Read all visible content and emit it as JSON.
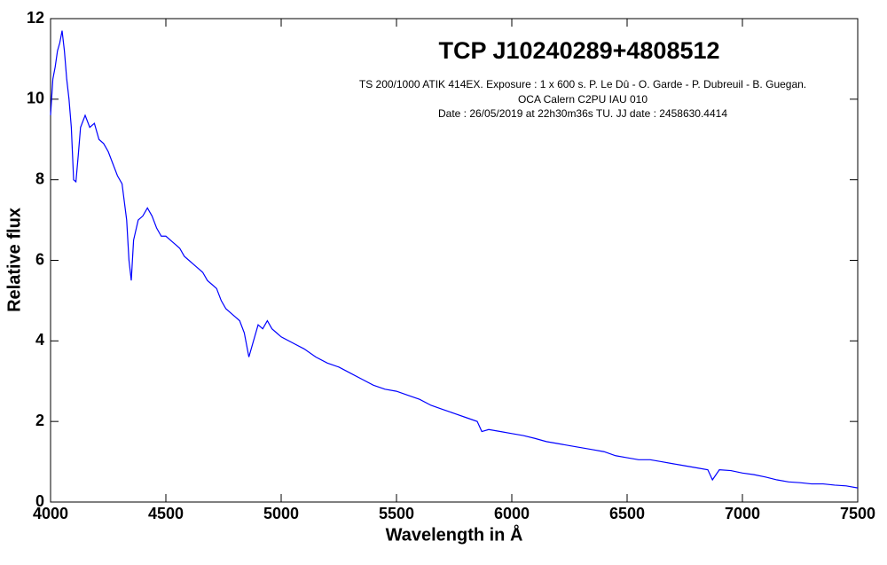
{
  "chart_data": {
    "type": "line",
    "title": "TCP J10240289+4808512",
    "subtitle": [
      "TS 200/1000 ATIK 414EX. Exposure : 1 x 600 s. P. Le Dû - O. Garde - P. Dubreuil - B. Guegan.",
      "OCA Calern C2PU IAU 010",
      "Date : 26/05/2019 at 22h30m36s TU. JJ date : 2458630.4414"
    ],
    "xlabel": "Wavelength in Å",
    "ylabel": "Relative flux",
    "xlim": [
      4000,
      7500
    ],
    "ylim": [
      0,
      12
    ],
    "xticks": [
      4000,
      4500,
      5000,
      5500,
      6000,
      6500,
      7000,
      7500
    ],
    "yticks": [
      0,
      2,
      4,
      6,
      8,
      10,
      12
    ],
    "x": [
      4000,
      4010,
      4020,
      4030,
      4040,
      4050,
      4060,
      4070,
      4080,
      4090,
      4100,
      4110,
      4120,
      4130,
      4150,
      4170,
      4190,
      4210,
      4230,
      4250,
      4270,
      4290,
      4310,
      4330,
      4340,
      4350,
      4360,
      4380,
      4400,
      4420,
      4440,
      4460,
      4480,
      4500,
      4520,
      4540,
      4560,
      4580,
      4600,
      4620,
      4640,
      4660,
      4680,
      4700,
      4720,
      4740,
      4760,
      4780,
      4800,
      4820,
      4840,
      4850,
      4860,
      4880,
      4900,
      4920,
      4940,
      4960,
      4980,
      5000,
      5050,
      5100,
      5150,
      5200,
      5250,
      5300,
      5350,
      5400,
      5450,
      5500,
      5550,
      5600,
      5650,
      5700,
      5750,
      5800,
      5850,
      5870,
      5900,
      5950,
      6000,
      6050,
      6100,
      6150,
      6200,
      6250,
      6300,
      6350,
      6400,
      6450,
      6500,
      6550,
      6600,
      6650,
      6700,
      6750,
      6800,
      6850,
      6870,
      6900,
      6950,
      7000,
      7050,
      7100,
      7150,
      7200,
      7250,
      7300,
      7350,
      7400,
      7450,
      7500
    ],
    "series": [
      {
        "color": "#0000ff",
        "values": [
          9.6,
          10.5,
          10.8,
          11.2,
          11.4,
          11.7,
          11.2,
          10.5,
          10.0,
          9.3,
          8.0,
          7.95,
          8.6,
          9.3,
          9.6,
          9.3,
          9.4,
          9.0,
          8.9,
          8.7,
          8.4,
          8.1,
          7.9,
          7.0,
          6.0,
          5.5,
          6.5,
          7.0,
          7.1,
          7.3,
          7.1,
          6.8,
          6.6,
          6.6,
          6.5,
          6.4,
          6.3,
          6.1,
          6.0,
          5.9,
          5.8,
          5.7,
          5.5,
          5.4,
          5.3,
          5.0,
          4.8,
          4.7,
          4.6,
          4.5,
          4.2,
          3.9,
          3.6,
          4.0,
          4.4,
          4.3,
          4.5,
          4.3,
          4.2,
          4.1,
          3.95,
          3.8,
          3.6,
          3.45,
          3.35,
          3.2,
          3.05,
          2.9,
          2.8,
          2.75,
          2.65,
          2.55,
          2.4,
          2.3,
          2.2,
          2.1,
          2.0,
          1.75,
          1.8,
          1.75,
          1.7,
          1.65,
          1.58,
          1.5,
          1.45,
          1.4,
          1.35,
          1.3,
          1.25,
          1.15,
          1.1,
          1.05,
          1.05,
          1.0,
          0.95,
          0.9,
          0.85,
          0.8,
          0.55,
          0.8,
          0.78,
          0.72,
          0.68,
          0.62,
          0.55,
          0.5,
          0.48,
          0.45,
          0.45,
          0.42,
          0.4,
          0.35
        ]
      }
    ]
  }
}
